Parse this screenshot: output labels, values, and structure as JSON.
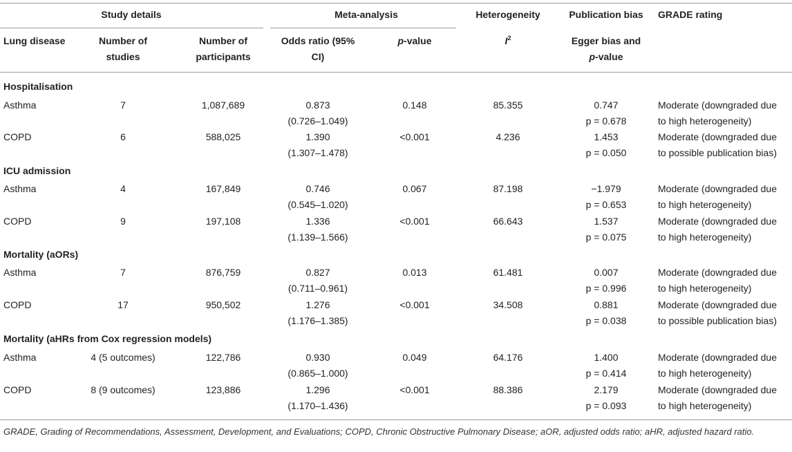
{
  "groups": {
    "study_details": "Study details",
    "meta_analysis": "Meta-analysis",
    "heterogeneity": "Heterogeneity",
    "publication_bias": "Publication bias",
    "grade_rating": "GRADE rating"
  },
  "columns": {
    "lung_disease": "Lung disease",
    "num_studies_l1": "Number of",
    "num_studies_l2": "studies",
    "num_part_l1": "Number of",
    "num_part_l2": "participants",
    "or_l1": "Odds ratio (95%",
    "or_l2": "CI)",
    "p_italic": "p",
    "p_rest": "-value",
    "i2_letter": "I",
    "i2_sup": "2",
    "egger_l1": "Egger bias and",
    "egger_p_italic": "p",
    "egger_p_rest": "-value"
  },
  "sections": [
    {
      "title": "Hospitalisation",
      "rows": [
        {
          "disease": "Asthma",
          "studies": "7",
          "participants": "1,087,689",
          "or": "0.873",
          "ci": "(0.726–1.049)",
          "p": "0.148",
          "i2": "85.355",
          "egger": "0.747",
          "egger_p": "p = 0.678",
          "grade1": "Moderate (downgraded due",
          "grade2": "to high heterogeneity)"
        },
        {
          "disease": "COPD",
          "studies": "6",
          "participants": "588,025",
          "or": "1.390",
          "ci": "(1.307–1.478)",
          "p": "<0.001",
          "i2": "4.236",
          "egger": "1.453",
          "egger_p": "p = 0.050",
          "grade1": "Moderate (downgraded due",
          "grade2": "to possible publication bias)"
        }
      ]
    },
    {
      "title": "ICU admission",
      "rows": [
        {
          "disease": "Asthma",
          "studies": "4",
          "participants": "167,849",
          "or": "0.746",
          "ci": "(0.545–1.020)",
          "p": "0.067",
          "i2": "87.198",
          "egger": "−1.979",
          "egger_p": "p = 0.653",
          "grade1": "Moderate (downgraded due",
          "grade2": "to high heterogeneity)"
        },
        {
          "disease": "COPD",
          "studies": "9",
          "participants": "197,108",
          "or": "1.336",
          "ci": "(1.139–1.566)",
          "p": "<0.001",
          "i2": "66.643",
          "egger": "1.537",
          "egger_p": "p = 0.075",
          "grade1": "Moderate (downgraded due",
          "grade2": "to high heterogeneity)"
        }
      ]
    },
    {
      "title": "Mortality (aORs)",
      "rows": [
        {
          "disease": "Asthma",
          "studies": "7",
          "participants": "876,759",
          "or": "0.827",
          "ci": "(0.711–0.961)",
          "p": "0.013",
          "i2": "61.481",
          "egger": "0.007",
          "egger_p": "p = 0.996",
          "grade1": "Moderate (downgraded due",
          "grade2": "to high heterogeneity)"
        },
        {
          "disease": "COPD",
          "studies": "17",
          "participants": "950,502",
          "or": "1.276",
          "ci": "(1.176–1.385)",
          "p": "<0.001",
          "i2": "34.508",
          "egger": "0.881",
          "egger_p": "p = 0.038",
          "grade1": "Moderate (downgraded due",
          "grade2": "to possible publication bias)"
        }
      ]
    },
    {
      "title": "Mortality (aHRs from Cox regression models)",
      "rows": [
        {
          "disease": "Asthma",
          "studies": "4 (5 outcomes)",
          "participants": "122,786",
          "or": "0.930",
          "ci": "(0.865–1.000)",
          "p": "0.049",
          "i2": "64.176",
          "egger": "1.400",
          "egger_p": "p = 0.414",
          "grade1": "Moderate (downgraded due",
          "grade2": "to high heterogeneity)"
        },
        {
          "disease": "COPD",
          "studies": "8 (9 outcomes)",
          "participants": "123,886",
          "or": "1.296",
          "ci": "(1.170–1.436)",
          "p": "<0.001",
          "i2": "88.386",
          "egger": "2.179",
          "egger_p": "p = 0.093",
          "grade1": "Moderate (downgraded due",
          "grade2": "to high heterogeneity)"
        }
      ]
    }
  ],
  "footnote": "GRADE, Grading of Recommendations, Assessment, Development, and Evaluations; COPD, Chronic Obstructive Pulmonary Disease; aOR, adjusted odds ratio; aHR, adjusted hazard ratio."
}
